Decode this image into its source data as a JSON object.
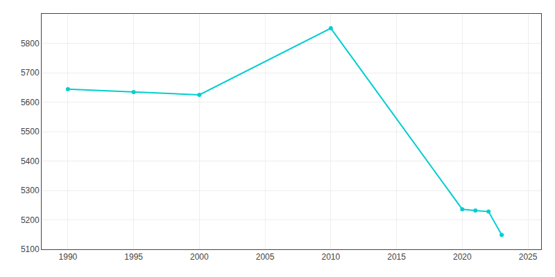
{
  "chart_data": {
    "type": "line",
    "x": [
      1990,
      1995,
      2000,
      2010,
      2020,
      2021,
      2022,
      2023
    ],
    "values": [
      5644,
      5634,
      5625,
      5851,
      5236,
      5232,
      5228,
      5149
    ],
    "color": "#00CED1",
    "marker": "circle",
    "xlim": [
      1988,
      2026
    ],
    "ylim": [
      5100,
      5900
    ],
    "xticks": [
      1990,
      1995,
      2000,
      2005,
      2010,
      2015,
      2020,
      2025
    ],
    "yticks": [
      5100,
      5200,
      5300,
      5400,
      5500,
      5600,
      5700,
      5800
    ],
    "grid": true
  }
}
